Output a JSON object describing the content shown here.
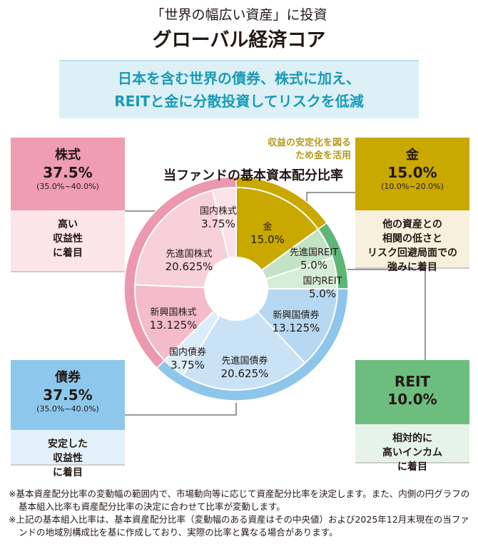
{
  "header": {
    "subtitle": "「世界の幅広い資産」に投資",
    "title": "グローバル経済コア"
  },
  "banner": {
    "line1": "日本を含む世界の債券、株式に加え、",
    "line2": "REITと金に分散投資してリスクを低減"
  },
  "boxes": {
    "stocks": {
      "name": "株式",
      "pct": "37.5%",
      "range": "(35.0%~40.0%)",
      "desc": [
        "高い",
        "収益性",
        "に着目"
      ]
    },
    "gold": {
      "name": "金",
      "pct": "15.0%",
      "range": "(10.0%~20.0%)",
      "desc": [
        "他の資産との",
        "相関の低さと",
        "リスク回避局面での",
        "強みに着目"
      ]
    },
    "bonds": {
      "name": "債券",
      "pct": "37.5%",
      "range": "(35.0%~40.0%)",
      "desc": [
        "安定した",
        "収益性",
        "に着目"
      ]
    },
    "reit": {
      "name": "REIT",
      "pct": "10.0%",
      "desc": [
        "相対的に",
        "高いインカム",
        "に着目"
      ]
    }
  },
  "gold_note": [
    "収益の安定化を図る",
    "ため金を活用"
  ],
  "chart_data": {
    "type": "pie",
    "title": "当ファンドの基本資本配分比率",
    "outer": [
      {
        "name": "金",
        "value": 15.0,
        "color": "#c9a800"
      },
      {
        "name": "REIT",
        "value": 10.0,
        "color": "#5db677"
      },
      {
        "name": "債券",
        "value": 37.5,
        "color": "#8dc6ea"
      },
      {
        "name": "株式",
        "value": 37.5,
        "color": "#ec98ae"
      }
    ],
    "inner": [
      {
        "name": "金",
        "value": 15.0,
        "label": "15.0%",
        "color": "#c9a800"
      },
      {
        "name": "先進国REIT",
        "value": 5.0,
        "label": "5.0%",
        "color": "#c3e3c6"
      },
      {
        "name": "国内REIT",
        "value": 5.0,
        "label": "5.0%",
        "color": "#d6edd8"
      },
      {
        "name": "新興国債券",
        "value": 13.125,
        "label": "13.125%",
        "color": "#b6d8f2"
      },
      {
        "name": "先進国債券",
        "value": 20.625,
        "label": "20.625%",
        "color": "#c9e2f6"
      },
      {
        "name": "国内債券",
        "value": 3.75,
        "label": "3.75%",
        "color": "#dcedfa"
      },
      {
        "name": "新興国株式",
        "value": 13.125,
        "label": "13.125%",
        "color": "#f4bccb"
      },
      {
        "name": "先進国株式",
        "value": 20.625,
        "label": "20.625%",
        "color": "#f7d0da"
      },
      {
        "name": "国内株式",
        "value": 3.75,
        "label": "3.75%",
        "color": "#fae2e8"
      }
    ]
  },
  "notes": [
    "※基本資産配分比率の変動幅の範囲内で、市場動向等に応じて資産配分比率を決定します。また、内側の円グラフの基本組入比率も資産配分比率の決定に合わせて比率が変動します。",
    "※上記の基本組入比率は、基本資産配分比率（変動幅のある資産はその中央値）および2025年12月末現在の当ファンドの地域別構成比を基に作成しており、実際の比率と異なる場合があります。"
  ]
}
